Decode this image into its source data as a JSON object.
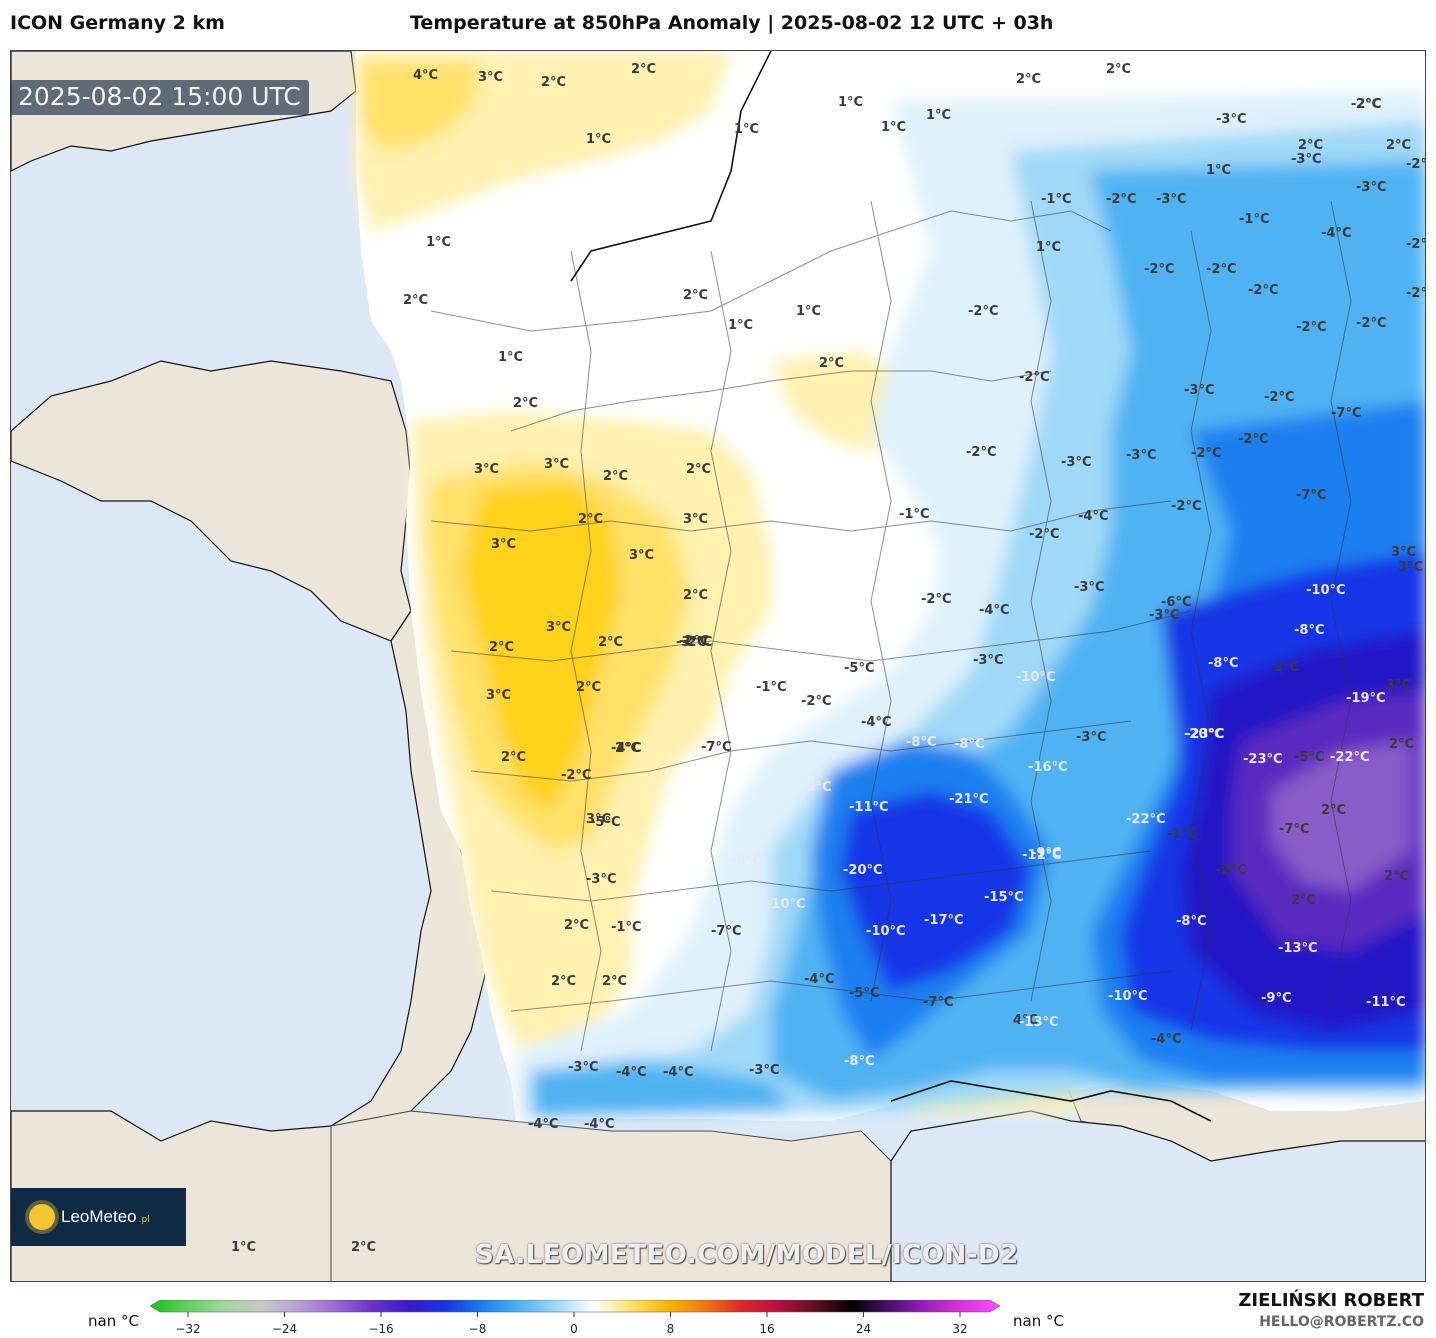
{
  "header": {
    "model": "ICON Germany 2 km",
    "title": "Temperature at 850hPa Anomaly | 2025-08-02 12 UTC + 03h"
  },
  "map": {
    "valid_time": "2025-08-02 15:00 UTC",
    "watermark": "SA.LEOMETEO.COM/MODEL/ICON-D2",
    "labels": [
      "4°C",
      "3°C",
      "2°C",
      "2°C",
      "1°C",
      "1°C",
      "1°C",
      "1°C",
      "1°C",
      "2°C",
      "2°C",
      "-2°C",
      "-3°C",
      "-2°C",
      "-3°C",
      "-3°C",
      "-1°C",
      "-2°C",
      "-3°C",
      "-1°C",
      "-4°C",
      "-2°C",
      "1°C",
      "2°C",
      "1°C",
      "2°C",
      "1°C",
      "-2°C",
      "-2°C",
      "-2°C",
      "-2°C",
      "-2°C",
      "-2°C",
      "-2°C",
      "1°C",
      "2°C",
      "2°C",
      "-2°C",
      "-3°C",
      "-2°C",
      "-7°C",
      "3°C",
      "3°C",
      "2°C",
      "2°C",
      "-2°C",
      "-3°C",
      "-3°C",
      "-2°C",
      "-2°C",
      "-7°C",
      "3°C",
      "2°C",
      "3°C",
      "-1°C",
      "-4°C",
      "-2°C",
      "3°C",
      "3°C",
      "2°C",
      "-2°C",
      "-2°C",
      "-3°C",
      "-6°C",
      "-8°C",
      "3°C",
      "2°C",
      "2°C",
      "-2°C",
      "-5°C",
      "-4°C",
      "-3°C",
      "-10°C",
      "3°C",
      "3°C",
      "2°C",
      "-3°C",
      "-3°C",
      "-10°C",
      "-8°C",
      "2°C",
      "2°C",
      "-2°C",
      "-1°C",
      "-2°C",
      "-3°C",
      "-20°C",
      "-19°C",
      "3°C",
      "2°C",
      "-4°C",
      "-4°C",
      "-8°C",
      "-8°C",
      "-23°C",
      "-22°C",
      "2°C",
      "3°C",
      "-2°C",
      "-7°C",
      "-16°C",
      "-23°C",
      "-5°C",
      "-9°C",
      "-11°C",
      "-21°C",
      "2°C",
      "-5°C",
      "-22°C",
      "-7°C",
      "-9°C",
      "-11°C",
      "-1°C",
      "-8°C",
      "-20°C",
      "-2°C",
      "2°C",
      "-3°C",
      "-10°C",
      "-17°C",
      "2°C",
      "2°C",
      "-1°C",
      "-7°C",
      "-10°C",
      "-15°C",
      "-8°C",
      "-13°C",
      "2°C",
      "2°C",
      "-4°C",
      "-5°C",
      "-7°C",
      "4°C",
      "-10°C",
      "-9°C",
      "-11°C",
      "-13°C",
      "-8°C",
      "-4°C",
      "-3°C",
      "-4°C",
      "-4°C",
      "-3°C",
      "-4°C",
      "-4°C",
      "1°C",
      "1°C",
      "2°C",
      "2°C",
      "2°C",
      "1°C",
      "2°C"
    ],
    "legend_overlay_visible": true
  },
  "colors": {
    "sea": "#dde8f6",
    "land_outside": "#ece5da",
    "anomaly_zero": "#ffffff",
    "warm_1": "#fff1b0",
    "warm_2": "#ffe16b",
    "warm_3": "#ffd21a",
    "warm_4": "#f9b800",
    "cold_1": "#dff1fb",
    "cold_2": "#9fd9f7",
    "cold_3": "#4fb3f3",
    "cold_4": "#1a7ff0",
    "cold_5": "#1535e6",
    "cold_6": "#2415c5",
    "cold_7": "#5a2bc0",
    "cold_8": "#8a5cc8"
  },
  "logo": {
    "brand": "LeoMeteo",
    "suffix": ".pl"
  },
  "colorbar": {
    "unit_left": "nan °C",
    "unit_right": "nan °C",
    "ticks": [
      "−32",
      "−24",
      "−16",
      "−8",
      "0",
      "8",
      "16",
      "24",
      "32"
    ],
    "stops": [
      "#17c217",
      "#60d060",
      "#9ed89e",
      "#c8c8c8",
      "#b9a0d8",
      "#9b6bd6",
      "#6b32c8",
      "#3a1ad0",
      "#1535e6",
      "#1a7ff0",
      "#4fb3f3",
      "#9fd9f7",
      "#ffffff",
      "#ffe16b",
      "#f9b800",
      "#f07a10",
      "#e02828",
      "#b81040",
      "#601020",
      "#000000",
      "#4a1070",
      "#9a20c0",
      "#e030e0",
      "#ff4cff"
    ]
  },
  "credits": {
    "author": "ZIELIŃSKI ROBERT",
    "email": "HELLO@ROBERTZ.CO"
  }
}
